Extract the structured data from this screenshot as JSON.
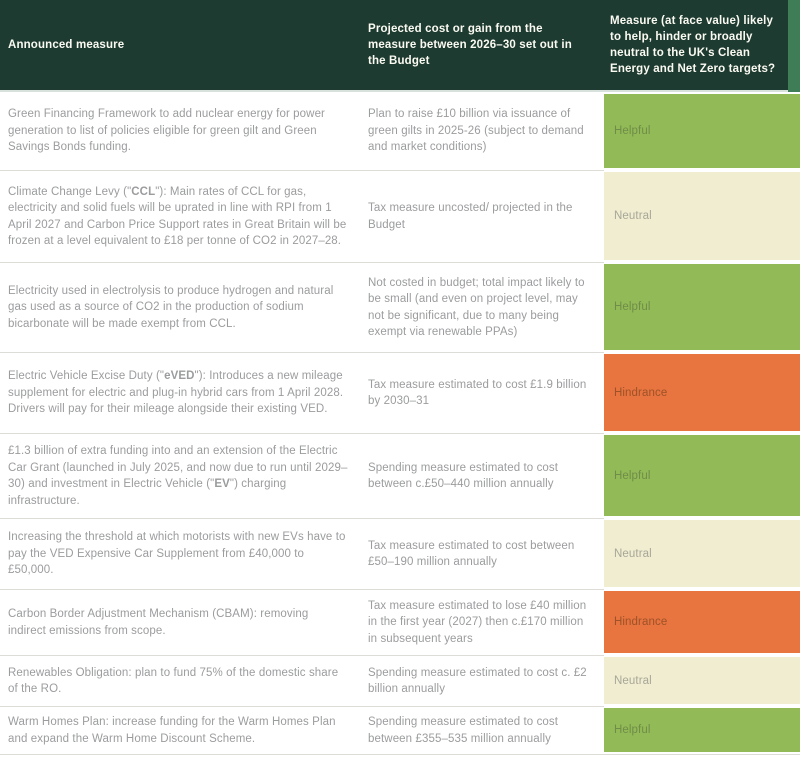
{
  "header": {
    "columns": [
      {
        "label": "Announced measure"
      },
      {
        "label": "Projected cost or gain from the measure between 2026–30 set out in the Budget"
      },
      {
        "label": "Measure (at face value) likely to help, hinder or broadly neutral to the UK's Clean Energy and Net Zero targets?"
      }
    ]
  },
  "colors": {
    "header_bg": "#1d3b31",
    "header_text": "#fbfaf2",
    "header_edge_strip": "#3e7d55",
    "body_text": "#9b9c9e",
    "row_divider": "#dedcd6"
  },
  "verdict_styles": {
    "Helpful": {
      "bg": "#92bb57",
      "fg": "#6f8c49"
    },
    "Neutral": {
      "bg": "#f0edd1",
      "fg": "#a8a797"
    },
    "Hindrance": {
      "bg": "#e87440",
      "fg": "#9d5227"
    }
  },
  "rows": [
    {
      "measure": [
        {
          "t": "Green Financing Framework to add nuclear energy for power generation to list of policies eligible for green gilt and Green Savings Bonds funding.",
          "b": false
        }
      ],
      "cost": "Plan to raise £10 billion via issuance of green gilts in 2025-26 (subject to demand and market conditions)",
      "verdict": "Helpful"
    },
    {
      "measure": [
        {
          "t": "Climate Change Levy (\"",
          "b": false
        },
        {
          "t": "CCL",
          "b": true
        },
        {
          "t": "\"): Main rates of CCL for gas, electricity and solid fuels will be uprated in line with RPI from 1 April 2027 and Carbon Price Support rates in Great Britain will be frozen at a level equivalent to £18 per tonne of CO2 in 2027–28.",
          "b": false
        }
      ],
      "cost": "Tax measure uncosted/ projected in the Budget",
      "verdict": "Neutral"
    },
    {
      "measure": [
        {
          "t": "Electricity used in electrolysis to produce hydrogen and natural gas used as a source of CO2 in the production of sodium bicarbonate will be made exempt from CCL.",
          "b": false
        }
      ],
      "cost": "Not costed in budget; total impact likely to be small (and even on project level, may not be significant, due to many being exempt via renewable PPAs)",
      "verdict": "Helpful"
    },
    {
      "measure": [
        {
          "t": "Electric Vehicle Excise Duty (\"",
          "b": false
        },
        {
          "t": "eVED",
          "b": true
        },
        {
          "t": "\"): Introduces a new mileage supplement for electric and plug-in hybrid cars from 1 April 2028. Drivers will pay for their mileage alongside their existing VED.",
          "b": false
        }
      ],
      "cost": "Tax measure estimated to cost £1.9 billion by 2030–31",
      "verdict": "Hindrance"
    },
    {
      "measure": [
        {
          "t": "£1.3 billion of extra funding into and an extension of the Electric Car Grant (launched in July 2025, and now due to run until 2029–30) and investment in Electric Vehicle (\"",
          "b": false
        },
        {
          "t": "EV",
          "b": true
        },
        {
          "t": "\") charging infrastructure.",
          "b": false
        }
      ],
      "cost": "Spending measure estimated to cost between c.£50–440 million annually",
      "verdict": "Helpful"
    },
    {
      "measure": [
        {
          "t": "Increasing the threshold at which motorists with new EVs have to pay the VED Expensive Car Supplement from £40,000 to £50,000.",
          "b": false
        }
      ],
      "cost": "Tax measure estimated to cost between £50–190 million annually",
      "verdict": "Neutral"
    },
    {
      "measure": [
        {
          "t": "Carbon Border Adjustment Mechanism (CBAM): removing indirect emissions from scope.",
          "b": false
        }
      ],
      "cost": "Tax measure estimated to lose £40 million in the first year (2027) then c.£170 million in subsequent years",
      "verdict": "Hindrance"
    },
    {
      "measure": [
        {
          "t": "Renewables Obligation: plan to fund 75% of the domestic share of the RO.",
          "b": false
        }
      ],
      "cost": "Spending measure estimated to cost c. £2 billion annually",
      "verdict": "Neutral"
    },
    {
      "measure": [
        {
          "t": "Warm Homes Plan: increase funding for the Warm Homes Plan and expand the Warm Home Discount Scheme.",
          "b": false
        }
      ],
      "cost": "Spending measure estimated to cost between £355–535 million annually",
      "verdict": "Helpful"
    }
  ]
}
